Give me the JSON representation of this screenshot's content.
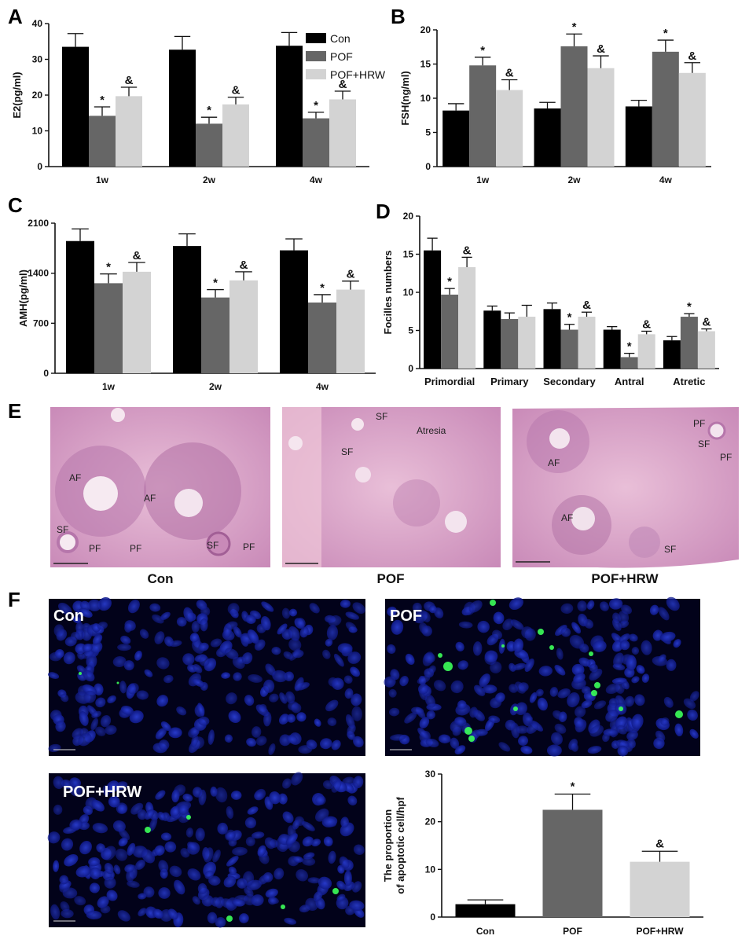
{
  "panels": {
    "A": "A",
    "B": "B",
    "C": "C",
    "D": "D",
    "E": "E",
    "F": "F"
  },
  "colors": {
    "Con": "#000000",
    "POF": "#666666",
    "POF+HRW": "#d3d3d3"
  },
  "legend": [
    "Con",
    "POF",
    "POF+HRW"
  ],
  "chart_data": [
    {
      "id": "A",
      "type": "bar",
      "ylabel": "E2(pg/ml)",
      "ylim": [
        0,
        40
      ],
      "yticks": [
        0,
        10,
        20,
        30,
        40
      ],
      "categories": [
        "1w",
        "2w",
        "4w"
      ],
      "series": [
        {
          "name": "Con",
          "values": [
            33.5,
            32.7,
            33.8
          ],
          "errors": [
            3.7,
            3.7,
            3.7
          ],
          "marks": [
            "",
            "",
            ""
          ]
        },
        {
          "name": "POF",
          "values": [
            14.2,
            12.0,
            13.5
          ],
          "errors": [
            2.5,
            1.8,
            1.7
          ],
          "marks": [
            "*",
            "*",
            "*"
          ]
        },
        {
          "name": "POF+HRW",
          "values": [
            19.7,
            17.4,
            18.8
          ],
          "errors": [
            2.5,
            2.0,
            2.3
          ],
          "marks": [
            "&",
            "&",
            "&"
          ]
        }
      ]
    },
    {
      "id": "B",
      "type": "bar",
      "ylabel": "FSH(ng/ml)",
      "ylim": [
        0,
        20
      ],
      "yticks": [
        0,
        5,
        10,
        15,
        20
      ],
      "categories": [
        "1w",
        "2w",
        "4w"
      ],
      "series": [
        {
          "name": "Con",
          "values": [
            8.2,
            8.5,
            8.8
          ],
          "errors": [
            1.0,
            0.9,
            0.9
          ],
          "marks": [
            "",
            "",
            ""
          ]
        },
        {
          "name": "POF",
          "values": [
            14.8,
            17.6,
            16.8
          ],
          "errors": [
            1.2,
            1.8,
            1.7
          ],
          "marks": [
            "*",
            "*",
            "*"
          ]
        },
        {
          "name": "POF+HRW",
          "values": [
            11.2,
            14.4,
            13.7
          ],
          "errors": [
            1.5,
            1.8,
            1.5
          ],
          "marks": [
            "&",
            "&",
            "&"
          ]
        }
      ]
    },
    {
      "id": "C",
      "type": "bar",
      "ylabel": "AMH(pg/ml)",
      "ylim": [
        0,
        2100
      ],
      "yticks": [
        0,
        700,
        1400,
        2100
      ],
      "categories": [
        "1w",
        "2w",
        "4w"
      ],
      "series": [
        {
          "name": "Con",
          "values": [
            1850,
            1780,
            1720
          ],
          "errors": [
            170,
            170,
            160
          ],
          "marks": [
            "",
            "",
            ""
          ]
        },
        {
          "name": "POF",
          "values": [
            1260,
            1060,
            990
          ],
          "errors": [
            130,
            110,
            110
          ],
          "marks": [
            "*",
            "*",
            "*"
          ]
        },
        {
          "name": "POF+HRW",
          "values": [
            1420,
            1300,
            1170
          ],
          "errors": [
            130,
            120,
            120
          ],
          "marks": [
            "&",
            "&",
            "&"
          ]
        }
      ]
    },
    {
      "id": "D",
      "type": "bar",
      "ylabel": "Focilles numbers",
      "ylim": [
        0,
        20
      ],
      "yticks": [
        0,
        5,
        10,
        15,
        20
      ],
      "categories": [
        "Primordial",
        "Primary",
        "Secondary",
        "Antral",
        "Atretic"
      ],
      "series": [
        {
          "name": "Con",
          "values": [
            15.5,
            7.6,
            7.8,
            5.1,
            3.7
          ],
          "errors": [
            1.6,
            0.6,
            0.8,
            0.4,
            0.5
          ],
          "marks": [
            "",
            "",
            "",
            "",
            ""
          ]
        },
        {
          "name": "POF",
          "values": [
            9.7,
            6.5,
            5.1,
            1.5,
            6.8
          ],
          "errors": [
            0.8,
            0.8,
            0.7,
            0.5,
            0.4
          ],
          "marks": [
            "*",
            "",
            "*",
            "*",
            "*"
          ]
        },
        {
          "name": "POF+HRW",
          "values": [
            13.3,
            6.8,
            6.8,
            4.5,
            4.9
          ],
          "errors": [
            1.3,
            1.5,
            0.6,
            0.4,
            0.3
          ],
          "marks": [
            "&",
            "",
            "&",
            "&",
            "&"
          ]
        }
      ]
    },
    {
      "id": "F",
      "type": "bar",
      "ylabel": "The proportion of apoptotic cell/hpf",
      "ylabel_lines": [
        "The proportion",
        "of apoptotic cell/hpf"
      ],
      "ylim": [
        0,
        30
      ],
      "yticks": [
        0,
        10,
        20,
        30
      ],
      "categories": [
        "Con",
        "POF",
        "POF+HRW"
      ],
      "values": [
        2.7,
        22.5,
        11.6
      ],
      "errors": [
        0.9,
        3.3,
        2.2
      ],
      "marks": [
        "",
        "*",
        "&"
      ],
      "bar_colors": [
        "#000000",
        "#666666",
        "#d3d3d3"
      ]
    }
  ],
  "histology": {
    "captions": [
      "Con",
      "POF",
      "POF+HRW"
    ],
    "con_labels": [
      "AF",
      "AF",
      "SF",
      "PF",
      "PF",
      "SF",
      "PF"
    ],
    "pof_labels": [
      "SF",
      "Atresia",
      "SF"
    ],
    "hrw_labels": [
      "AF",
      "PF",
      "SF",
      "PF",
      "AF",
      "SF"
    ]
  },
  "tunel": {
    "labels": [
      "Con",
      "POF",
      "POF+HRW"
    ]
  }
}
